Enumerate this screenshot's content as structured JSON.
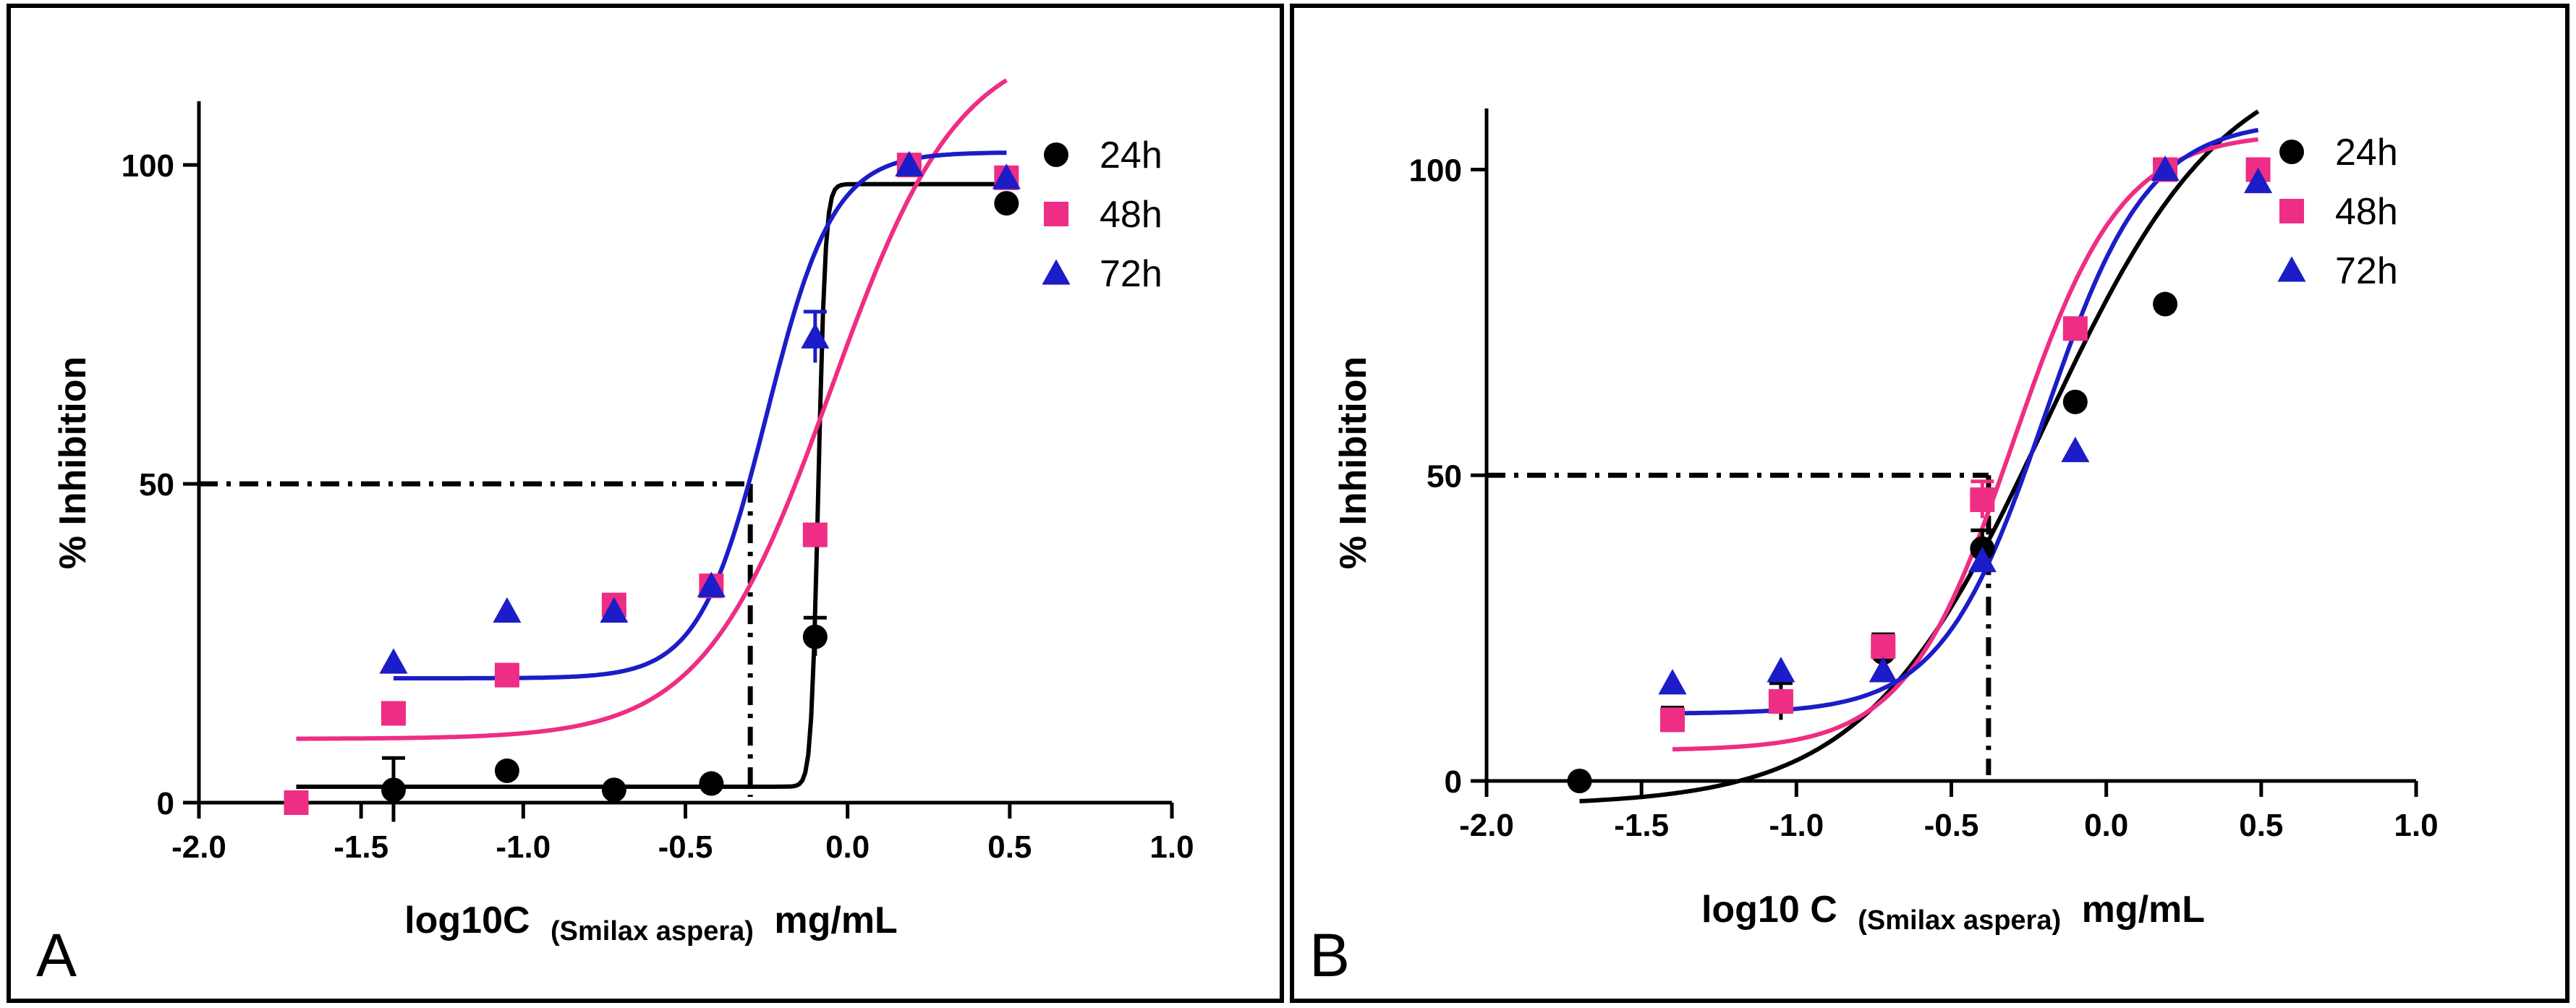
{
  "colors": {
    "black": "#000000",
    "pink": "#ee2d84",
    "blue": "#1c1cc8"
  },
  "legend": [
    {
      "label": "24h",
      "marker": "circle",
      "color": "#000000"
    },
    {
      "label": "48h",
      "marker": "square",
      "color": "#ee2d84"
    },
    {
      "label": "72h",
      "marker": "triangle",
      "color": "#1c1cc8"
    }
  ],
  "chart_data": [
    {
      "type": "scatter",
      "panel_label": "A",
      "ylabel": "% Inhibition",
      "xlabel": {
        "prefix": "log10C",
        "sub": "(Smilax aspera)",
        "suffix": "mg/mL"
      },
      "xlim": [
        -2.0,
        1.0
      ],
      "ylim": [
        0,
        110
      ],
      "x_ticks": [
        -2.0,
        -1.5,
        -1.0,
        -0.5,
        0.0,
        0.5,
        1.0
      ],
      "x_tick_labels": [
        "-2.0",
        "-1.5",
        "-1.0",
        "-0.5",
        "0.0",
        "0.5",
        "1.0"
      ],
      "y_ticks": [
        0,
        50,
        100
      ],
      "y_tick_labels": [
        "0",
        "50",
        "100"
      ],
      "ic50_guide": {
        "x": -0.3,
        "y": 50
      },
      "series": [
        {
          "name": "24h",
          "marker": "circle",
          "color": "#000000",
          "points": [
            [
              -1.7,
              0
            ],
            [
              -1.4,
              2
            ],
            [
              -1.05,
              5
            ],
            [
              -0.72,
              2
            ],
            [
              -0.42,
              3
            ],
            [
              -0.1,
              26
            ],
            [
              0.19,
              100
            ],
            [
              0.49,
              94
            ]
          ],
          "errors": [
            0,
            5,
            0,
            0,
            0,
            3,
            0,
            0
          ],
          "fit": {
            "bottom": 2.5,
            "top": 97,
            "logIC50": -0.09,
            "hill": 40
          }
        },
        {
          "name": "48h",
          "marker": "square",
          "color": "#ee2d84",
          "points": [
            [
              -1.7,
              0
            ],
            [
              -1.4,
              14
            ],
            [
              -1.05,
              20
            ],
            [
              -0.72,
              31
            ],
            [
              -0.42,
              34
            ],
            [
              -0.1,
              42
            ],
            [
              0.19,
              100
            ],
            [
              0.49,
              98
            ]
          ],
          "errors": [
            0,
            0,
            0,
            0,
            0,
            0,
            0,
            0
          ],
          "fit": {
            "bottom": 10,
            "top": 120,
            "logIC50": -0.05,
            "hill": 2.2
          }
        },
        {
          "name": "72h",
          "marker": "triangle",
          "color": "#1c1cc8",
          "points": [
            [
              -1.4,
              22
            ],
            [
              -1.05,
              30
            ],
            [
              -0.72,
              30
            ],
            [
              -0.42,
              34
            ],
            [
              -0.1,
              73
            ],
            [
              0.19,
              100
            ],
            [
              0.49,
              98
            ]
          ],
          "errors": [
            0,
            0,
            0,
            0,
            4,
            0,
            0
          ],
          "fit": {
            "bottom": 19.5,
            "top": 102,
            "logIC50": -0.25,
            "hill": 4.2
          }
        }
      ]
    },
    {
      "type": "scatter",
      "panel_label": "B",
      "ylabel": "% Inhibition",
      "xlabel": {
        "prefix": "log10 C",
        "sub": "(Smilax aspera)",
        "suffix": "mg/mL"
      },
      "xlim": [
        -2.0,
        1.0
      ],
      "ylim": [
        0,
        110
      ],
      "x_ticks": [
        -2.0,
        -1.5,
        -1.0,
        -0.5,
        0.0,
        0.5,
        1.0
      ],
      "x_tick_labels": [
        "-2.0",
        "-1.5",
        "-1.0",
        "-0.5",
        "0.0",
        "0.5",
        "1.0"
      ],
      "y_ticks": [
        0,
        50,
        100
      ],
      "y_tick_labels": [
        "0",
        "50",
        "100"
      ],
      "ic50_guide": {
        "x": -0.38,
        "y": 50
      },
      "series": [
        {
          "name": "24h",
          "marker": "circle",
          "color": "#000000",
          "points": [
            [
              -1.7,
              0
            ],
            [
              -1.4,
              10
            ],
            [
              -1.05,
              13
            ],
            [
              -0.72,
              21
            ],
            [
              -0.4,
              38
            ],
            [
              -0.1,
              62
            ],
            [
              0.19,
              78
            ],
            [
              0.49,
              100
            ]
          ],
          "errors": [
            0,
            2,
            3,
            3,
            3,
            0,
            0,
            0
          ],
          "fit": {
            "bottom": -4,
            "top": 120,
            "logIC50": -0.2,
            "hill": 1.5
          }
        },
        {
          "name": "48h",
          "marker": "square",
          "color": "#ee2d84",
          "points": [
            [
              -1.4,
              10
            ],
            [
              -1.05,
              13
            ],
            [
              -0.72,
              22
            ],
            [
              -0.4,
              46
            ],
            [
              -0.1,
              74
            ],
            [
              0.19,
              100
            ],
            [
              0.49,
              100
            ]
          ],
          "errors": [
            0,
            0,
            0,
            3,
            0,
            0,
            0
          ],
          "fit": {
            "bottom": 5,
            "top": 106,
            "logIC50": -0.3,
            "hill": 2.5
          }
        },
        {
          "name": "72h",
          "marker": "triangle",
          "color": "#1c1cc8",
          "points": [
            [
              -1.4,
              16
            ],
            [
              -1.05,
              18
            ],
            [
              -0.72,
              18
            ],
            [
              -0.4,
              36
            ],
            [
              -0.1,
              54
            ],
            [
              0.19,
              100
            ],
            [
              0.49,
              98
            ]
          ],
          "errors": [
            0,
            0,
            0,
            0,
            0,
            0,
            0
          ],
          "fit": {
            "bottom": 11,
            "top": 108,
            "logIC50": -0.2,
            "hill": 2.6
          }
        }
      ]
    }
  ]
}
